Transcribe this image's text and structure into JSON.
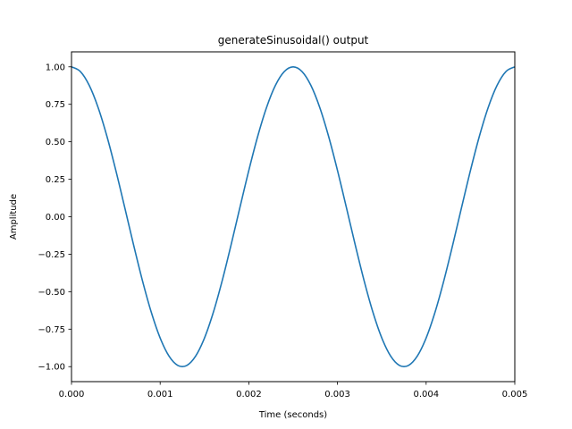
{
  "chart_data": {
    "type": "line",
    "title": "generateSinusoidal() output",
    "xlabel": "Time (seconds)",
    "ylabel": "Amplitude",
    "xlim": [
      0,
      0.005
    ],
    "ylim": [
      -1.1,
      1.1
    ],
    "grid": false,
    "legend": "none",
    "x_ticks": [
      {
        "value": 0.0,
        "label": "0.000"
      },
      {
        "value": 0.001,
        "label": "0.001"
      },
      {
        "value": 0.002,
        "label": "0.002"
      },
      {
        "value": 0.003,
        "label": "0.003"
      },
      {
        "value": 0.004,
        "label": "0.004"
      },
      {
        "value": 0.005,
        "label": "0.005"
      }
    ],
    "y_ticks": [
      {
        "value": -1.0,
        "label": "−1.00"
      },
      {
        "value": -0.75,
        "label": "−0.75"
      },
      {
        "value": -0.5,
        "label": "−0.50"
      },
      {
        "value": -0.25,
        "label": "−0.25"
      },
      {
        "value": 0.0,
        "label": "0.00"
      },
      {
        "value": 0.25,
        "label": "0.25"
      },
      {
        "value": 0.5,
        "label": "0.50"
      },
      {
        "value": 0.75,
        "label": "0.75"
      },
      {
        "value": 1.0,
        "label": "1.00"
      }
    ],
    "series": [
      {
        "color": "#1f77b4",
        "x": [
          0.0,
          0.0001,
          0.0002,
          0.0003,
          0.0004,
          0.0005,
          0.0006,
          0.0007,
          0.0008,
          0.0009,
          0.001,
          0.0011,
          0.0012,
          0.0013,
          0.0014,
          0.0015,
          0.0016,
          0.0017,
          0.0018,
          0.0019,
          0.002,
          0.0021,
          0.0022,
          0.0023,
          0.0024,
          0.0025,
          0.0026,
          0.0027,
          0.0028,
          0.0029,
          0.003,
          0.0031,
          0.0032,
          0.0033,
          0.0034,
          0.0035,
          0.0036,
          0.0037,
          0.0038,
          0.0039,
          0.004,
          0.0041,
          0.0042,
          0.0043,
          0.0044,
          0.0045,
          0.0046,
          0.0047,
          0.0048,
          0.0049,
          0.005
        ],
        "y": [
          1.0,
          0.9686,
          0.8763,
          0.729,
          0.5358,
          0.309,
          0.0628,
          -0.1874,
          -0.4258,
          -0.6374,
          -0.809,
          -0.9298,
          -0.9921,
          -0.9921,
          -0.9298,
          -0.809,
          -0.6374,
          -0.4258,
          -0.1874,
          0.0628,
          0.309,
          0.5358,
          0.729,
          0.8763,
          0.9686,
          1.0,
          0.9686,
          0.8763,
          0.729,
          0.5358,
          0.309,
          0.0628,
          -0.1874,
          -0.4258,
          -0.6374,
          -0.809,
          -0.9298,
          -0.9921,
          -0.9921,
          -0.9298,
          -0.809,
          -0.6374,
          -0.4258,
          -0.1874,
          0.0628,
          0.309,
          0.5358,
          0.729,
          0.8763,
          0.9686,
          1.0
        ]
      }
    ]
  }
}
